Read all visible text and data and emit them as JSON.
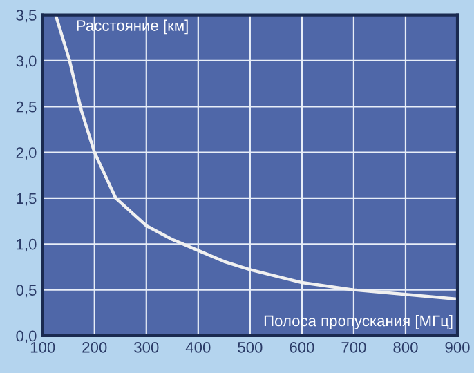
{
  "chart_data": {
    "type": "line",
    "xlabel": "Полоса пропускания [МГц]",
    "ylabel": "Расстояние [км]",
    "x": [
      125,
      152,
      175,
      200,
      241,
      300,
      350,
      400,
      450,
      500,
      600,
      700,
      800,
      900
    ],
    "series": [
      {
        "color": "#f0f0f0",
        "values": [
          3.5,
          3.0,
          2.45,
          2.0,
          1.5,
          1.2,
          1.05,
          0.93,
          0.81,
          0.72,
          0.58,
          0.5,
          0.45,
          0.4
        ]
      }
    ],
    "xlim": [
      100,
      900
    ],
    "ylim": [
      0,
      3.5
    ],
    "xticks": [
      100,
      200,
      300,
      400,
      500,
      600,
      700,
      800,
      900
    ],
    "yticks": [
      {
        "value": 0,
        "label": "0,0"
      },
      {
        "value": 0.5,
        "label": "0,5"
      },
      {
        "value": 1,
        "label": "1,0"
      },
      {
        "value": 1.5,
        "label": "1,5"
      },
      {
        "value": 2,
        "label": "2,0"
      },
      {
        "value": 2.5,
        "label": "2,5"
      },
      {
        "value": 3,
        "label": "3,0"
      },
      {
        "value": 3.5,
        "label": "3,5"
      }
    ],
    "grid": true,
    "line_style": "solid"
  }
}
